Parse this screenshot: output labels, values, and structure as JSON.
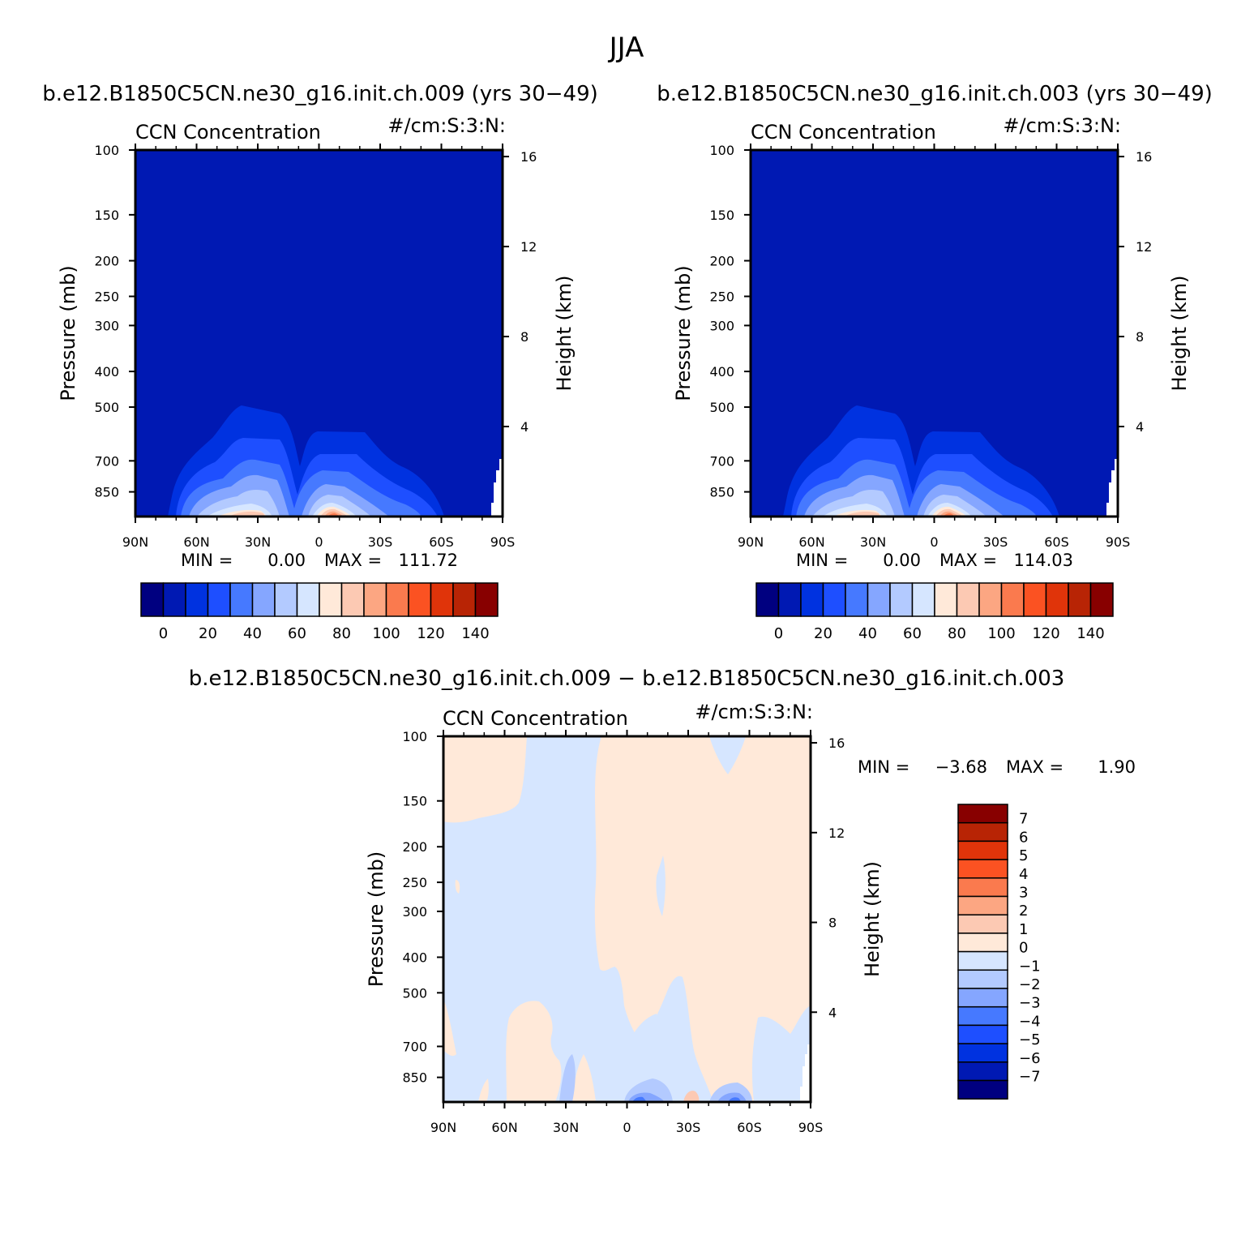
{
  "season": "JJA",
  "panels": [
    {
      "case_title": "b.e12.B1850C5CN.ne30_g16.init.ch.009 (yrs 30−49)",
      "variable": "CCN Concentration",
      "units": "#/cm:S:3:N:",
      "min_label": "MIN =",
      "min_value": "0.00",
      "max_label": "MAX =",
      "max_value": "111.72"
    },
    {
      "case_title": "b.e12.B1850C5CN.ne30_g16.init.ch.003 (yrs 30−49)",
      "variable": "CCN Concentration",
      "units": "#/cm:S:3:N:",
      "min_label": "MIN =",
      "min_value": "0.00",
      "max_label": "MAX =",
      "max_value": "114.03"
    },
    {
      "case_title": "b.e12.B1850C5CN.ne30_g16.init.ch.009 − b.e12.B1850C5CN.ne30_g16.init.ch.003",
      "variable": "CCN Concentration",
      "units": "#/cm:S:3:N:",
      "min_label": "MIN =",
      "min_value": "−3.68",
      "max_label": "MAX =",
      "max_value": "1.90"
    }
  ],
  "colors": {
    "absolute_scale": [
      "#000080",
      "#0019b3",
      "#0032e0",
      "#1e4fff",
      "#4679ff",
      "#85a6ff",
      "#b3caff",
      "#d6e6ff",
      "#ffe9d9",
      "#fcc9b3",
      "#fca682",
      "#fa7a4e",
      "#fb5222",
      "#e0340a",
      "#b82405",
      "#880000"
    ],
    "difference_scale": [
      "#000080",
      "#0019b3",
      "#0032e0",
      "#1e4fff",
      "#4679ff",
      "#85a6ff",
      "#b3caff",
      "#d6e6ff",
      "#ffe9d9",
      "#fcc9b3",
      "#fca682",
      "#fa7a4e",
      "#fb5222",
      "#e0340a",
      "#b82405",
      "#880000"
    ]
  },
  "chart_data": [
    {
      "type": "heatmap",
      "title": "CCN Concentration",
      "xlabel": "",
      "ylabel": "Pressure (mb)",
      "ylabel_right": "Height (km)",
      "x_ticks": [
        "90N",
        "60N",
        "30N",
        "0",
        "30S",
        "60S",
        "90S"
      ],
      "x_tick_values": [
        90,
        60,
        30,
        0,
        -30,
        -60,
        -90
      ],
      "y_ticks": [
        100,
        150,
        200,
        250,
        300,
        400,
        500,
        700,
        850
      ],
      "y_scale": "log",
      "y_range": [
        100,
        992
      ],
      "right_ticks": [
        16,
        12,
        8,
        4
      ],
      "levels": [
        0,
        10,
        20,
        30,
        40,
        50,
        60,
        70,
        80,
        90,
        100,
        110,
        120,
        130,
        140
      ],
      "colorbar_labels": [
        "0",
        "20",
        "40",
        "60",
        "80",
        "100",
        "120",
        "140"
      ],
      "background_level_color": "#0019b3",
      "min": 0.0,
      "max": 111.72
    },
    {
      "type": "heatmap",
      "title": "CCN Concentration",
      "xlabel": "",
      "ylabel": "Pressure (mb)",
      "ylabel_right": "Height (km)",
      "x_ticks": [
        "90N",
        "60N",
        "30N",
        "0",
        "30S",
        "60S",
        "90S"
      ],
      "x_tick_values": [
        90,
        60,
        30,
        0,
        -30,
        -60,
        -90
      ],
      "y_ticks": [
        100,
        150,
        200,
        250,
        300,
        400,
        500,
        700,
        850
      ],
      "y_scale": "log",
      "y_range": [
        100,
        992
      ],
      "right_ticks": [
        16,
        12,
        8,
        4
      ],
      "levels": [
        0,
        10,
        20,
        30,
        40,
        50,
        60,
        70,
        80,
        90,
        100,
        110,
        120,
        130,
        140
      ],
      "colorbar_labels": [
        "0",
        "20",
        "40",
        "60",
        "80",
        "100",
        "120",
        "140"
      ],
      "background_level_color": "#0019b3",
      "min": 0.0,
      "max": 114.03
    },
    {
      "type": "heatmap",
      "title": "CCN Concentration",
      "xlabel": "",
      "ylabel": "Pressure (mb)",
      "ylabel_right": "Height (km)",
      "x_ticks": [
        "90N",
        "60N",
        "30N",
        "0",
        "30S",
        "60S",
        "90S"
      ],
      "x_tick_values": [
        90,
        60,
        30,
        0,
        -30,
        -60,
        -90
      ],
      "y_ticks": [
        100,
        150,
        200,
        250,
        300,
        400,
        500,
        700,
        850
      ],
      "y_scale": "log",
      "y_range": [
        100,
        992
      ],
      "right_ticks": [
        16,
        12,
        8,
        4
      ],
      "levels": [
        -7,
        -6,
        -5,
        -4,
        -3,
        -2,
        -1,
        0,
        1,
        2,
        3,
        4,
        5,
        6,
        7
      ],
      "colorbar_labels": [
        "7",
        "6",
        "5",
        "4",
        "3",
        "2",
        "1",
        "0",
        "−1",
        "−2",
        "−3",
        "−4",
        "−5",
        "−6",
        "−7"
      ],
      "min": -3.68,
      "max": 1.9
    }
  ]
}
